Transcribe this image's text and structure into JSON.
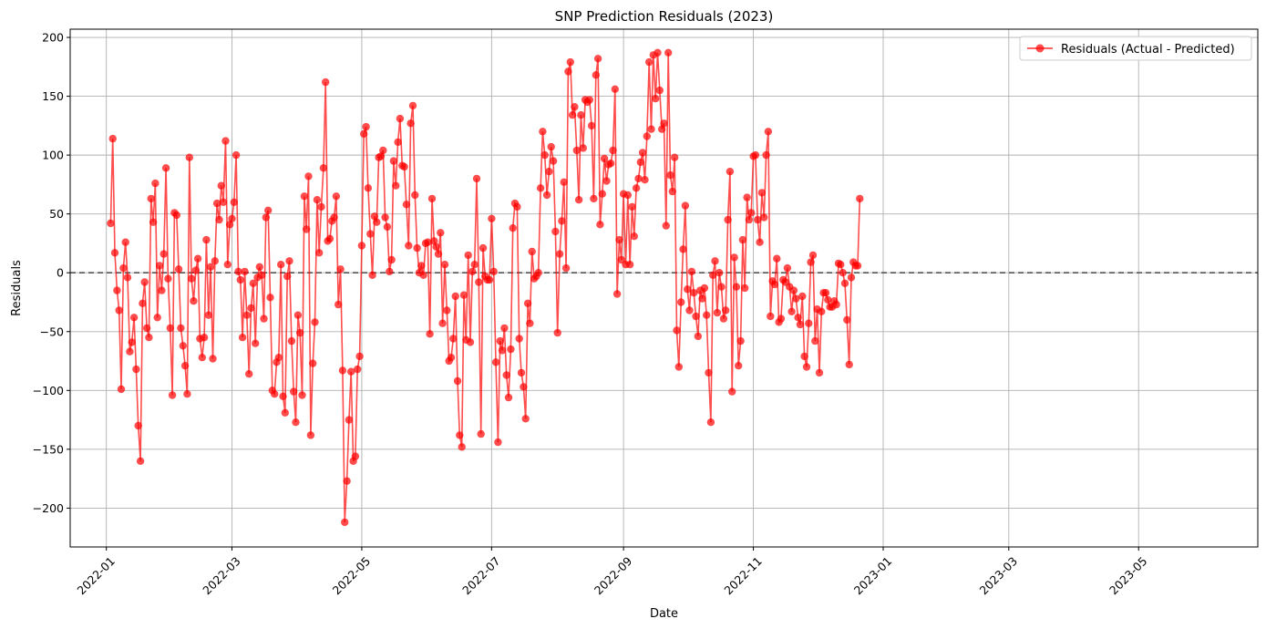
{
  "chart_data": {
    "type": "line",
    "title": "SNP Prediction Residuals (2023)",
    "xlabel": "Date",
    "ylabel": "Residuals",
    "xlim": [
      "2021-12-15",
      "2023-06-26"
    ],
    "ylim": [
      -233,
      207
    ],
    "x_ticks": [
      "2022-01",
      "2022-03",
      "2022-05",
      "2022-07",
      "2022-09",
      "2022-11",
      "2023-01",
      "2023-03",
      "2023-05"
    ],
    "y_ticks": [
      -200,
      -150,
      -100,
      -50,
      0,
      50,
      100,
      150,
      200
    ],
    "y_tick_labels": [
      "−200",
      "−150",
      "−100",
      "−50",
      "0",
      "50",
      "100",
      "150",
      "200"
    ],
    "grid": true,
    "reference_line": {
      "y": 0,
      "style": "dashed",
      "color": "#555555"
    },
    "legend": {
      "position": "top-right"
    },
    "series": [
      {
        "name": "Residuals (Actual - Predicted)",
        "color": "#ff0000",
        "marker": "circle",
        "start_date": "2022-01-03",
        "day_step": 1,
        "values": [
          42,
          114,
          17,
          -15,
          -32,
          -99,
          4,
          26,
          -4,
          -67,
          -59,
          -38,
          -82,
          -130,
          -160,
          -26,
          -8,
          -47,
          -55,
          63,
          43,
          76,
          -38,
          6,
          -15,
          16,
          89,
          -5,
          -47,
          -104,
          51,
          49,
          3,
          -47,
          -62,
          -79,
          -103,
          98,
          -5,
          -24,
          2,
          12,
          -56,
          -72,
          -55,
          28,
          -36,
          5,
          -73,
          10,
          59,
          45,
          74,
          60,
          112,
          7,
          41,
          46,
          60,
          100,
          1,
          -6,
          -55,
          1,
          -36,
          -86,
          -30,
          -9,
          -60,
          -4,
          5,
          -2,
          -39,
          47,
          53,
          -21,
          -100,
          -103,
          -76,
          -72,
          7,
          -105,
          -119,
          -3,
          10,
          -58,
          -101,
          -127,
          -36,
          -51,
          -104,
          65,
          37,
          82,
          -138,
          -77,
          -42,
          62,
          17,
          56,
          89,
          162,
          27,
          29,
          44,
          47,
          65,
          -27,
          3,
          -83,
          -212,
          -177,
          -125,
          -84,
          -160,
          -156,
          -82,
          -71,
          23,
          118,
          124,
          72,
          33,
          -2,
          48,
          43,
          98,
          99,
          104,
          47,
          39,
          1,
          11,
          95,
          74,
          111,
          131,
          91,
          90,
          58,
          23,
          127,
          142,
          66,
          21,
          0,
          6,
          -2,
          25,
          26,
          -52,
          63,
          27,
          22,
          16,
          34,
          -43,
          7,
          -32,
          -75,
          -72,
          -56,
          -20,
          -92,
          -138,
          -148,
          -19,
          -57,
          15,
          -59,
          1,
          7,
          80,
          -8,
          -137,
          21,
          -3,
          -6,
          -6,
          46,
          1,
          -76,
          -144,
          -58,
          -66,
          -47,
          -87,
          -106,
          -65,
          38,
          59,
          56,
          -56,
          -85,
          -97,
          -124,
          -26,
          -43,
          18,
          -5,
          -3,
          0,
          72,
          120,
          100,
          66,
          86,
          107,
          95,
          35,
          -51,
          16,
          44,
          77,
          4,
          171,
          179,
          134,
          141,
          104,
          62,
          134,
          106,
          147,
          145,
          147,
          125,
          63,
          168,
          182,
          41,
          67,
          97,
          78,
          92,
          93,
          104,
          156,
          -18,
          28,
          11,
          67,
          7,
          66,
          7,
          56,
          31,
          72,
          80,
          94,
          102,
          79,
          116,
          179,
          122,
          185,
          148,
          187,
          155,
          122,
          127,
          40,
          187,
          83,
          69,
          98,
          -49,
          -80,
          -25,
          20,
          57,
          -14,
          -32,
          1,
          -17,
          -37,
          -54,
          -15,
          -22,
          -13,
          -36,
          -85,
          -127,
          -2,
          10,
          -34,
          0,
          -12,
          -39,
          -32,
          45,
          86,
          -101,
          13,
          -12,
          -79,
          -58,
          28,
          -13,
          64,
          45,
          51,
          99,
          100,
          45,
          26,
          68,
          47,
          100,
          120,
          -37,
          -7,
          -10,
          12,
          -42,
          -39,
          -6,
          -8,
          4,
          -12,
          -33,
          -15,
          -22,
          -38,
          -44,
          -20,
          -71,
          -80,
          -43,
          9,
          15,
          -58,
          -31,
          -85,
          -33,
          -17,
          -17,
          -23,
          -29,
          -29,
          -24,
          -27,
          8,
          7,
          0,
          -9,
          -40,
          -78,
          -4,
          9,
          6,
          6,
          63
        ]
      }
    ]
  }
}
